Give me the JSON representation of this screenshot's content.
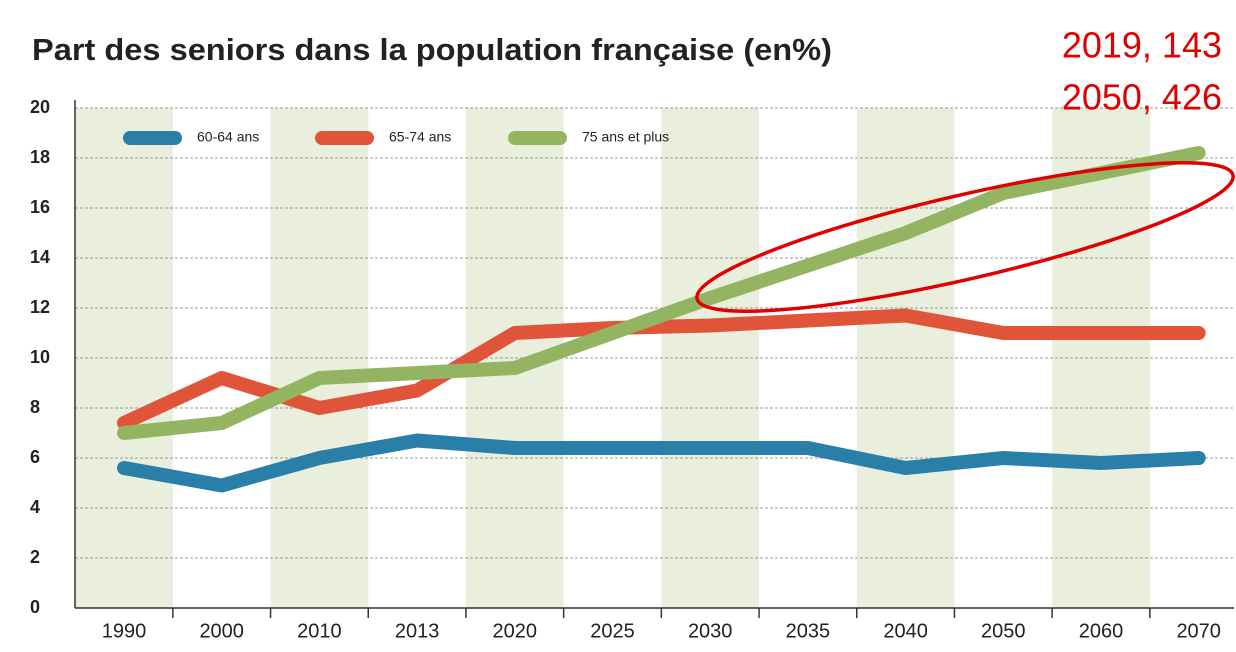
{
  "chart_data": {
    "type": "line",
    "title": "Part des seniors dans la population française (en%)",
    "annotations": [
      "2019, 143",
      "2050, 426"
    ],
    "categories": [
      "1990",
      "2000",
      "2010",
      "2013",
      "2020",
      "2025",
      "2030",
      "2035",
      "2040",
      "2050",
      "2060",
      "2070"
    ],
    "series": [
      {
        "name": "60-64 ans",
        "color": "#2a7fa8",
        "values": [
          5.6,
          4.9,
          6.0,
          6.7,
          6.4,
          6.4,
          6.4,
          6.4,
          5.6,
          6.0,
          5.8,
          6.0
        ]
      },
      {
        "name": "65-74 ans",
        "color": "#e0553a",
        "values": [
          7.4,
          9.2,
          8.0,
          8.7,
          11.0,
          11.2,
          11.3,
          11.5,
          11.7,
          11.0,
          11.0,
          11.0
        ]
      },
      {
        "name": "75 ans et plus",
        "color": "#93b562",
        "values": [
          7.0,
          7.4,
          9.2,
          9.4,
          9.6,
          11.0,
          12.4,
          13.7,
          15.0,
          16.6,
          17.4,
          18.2
        ]
      }
    ],
    "ylim": [
      0,
      20
    ],
    "yticks": [
      0,
      2,
      4,
      6,
      8,
      10,
      12,
      14,
      16,
      18,
      20
    ],
    "grid": true,
    "legend": "top-left"
  }
}
